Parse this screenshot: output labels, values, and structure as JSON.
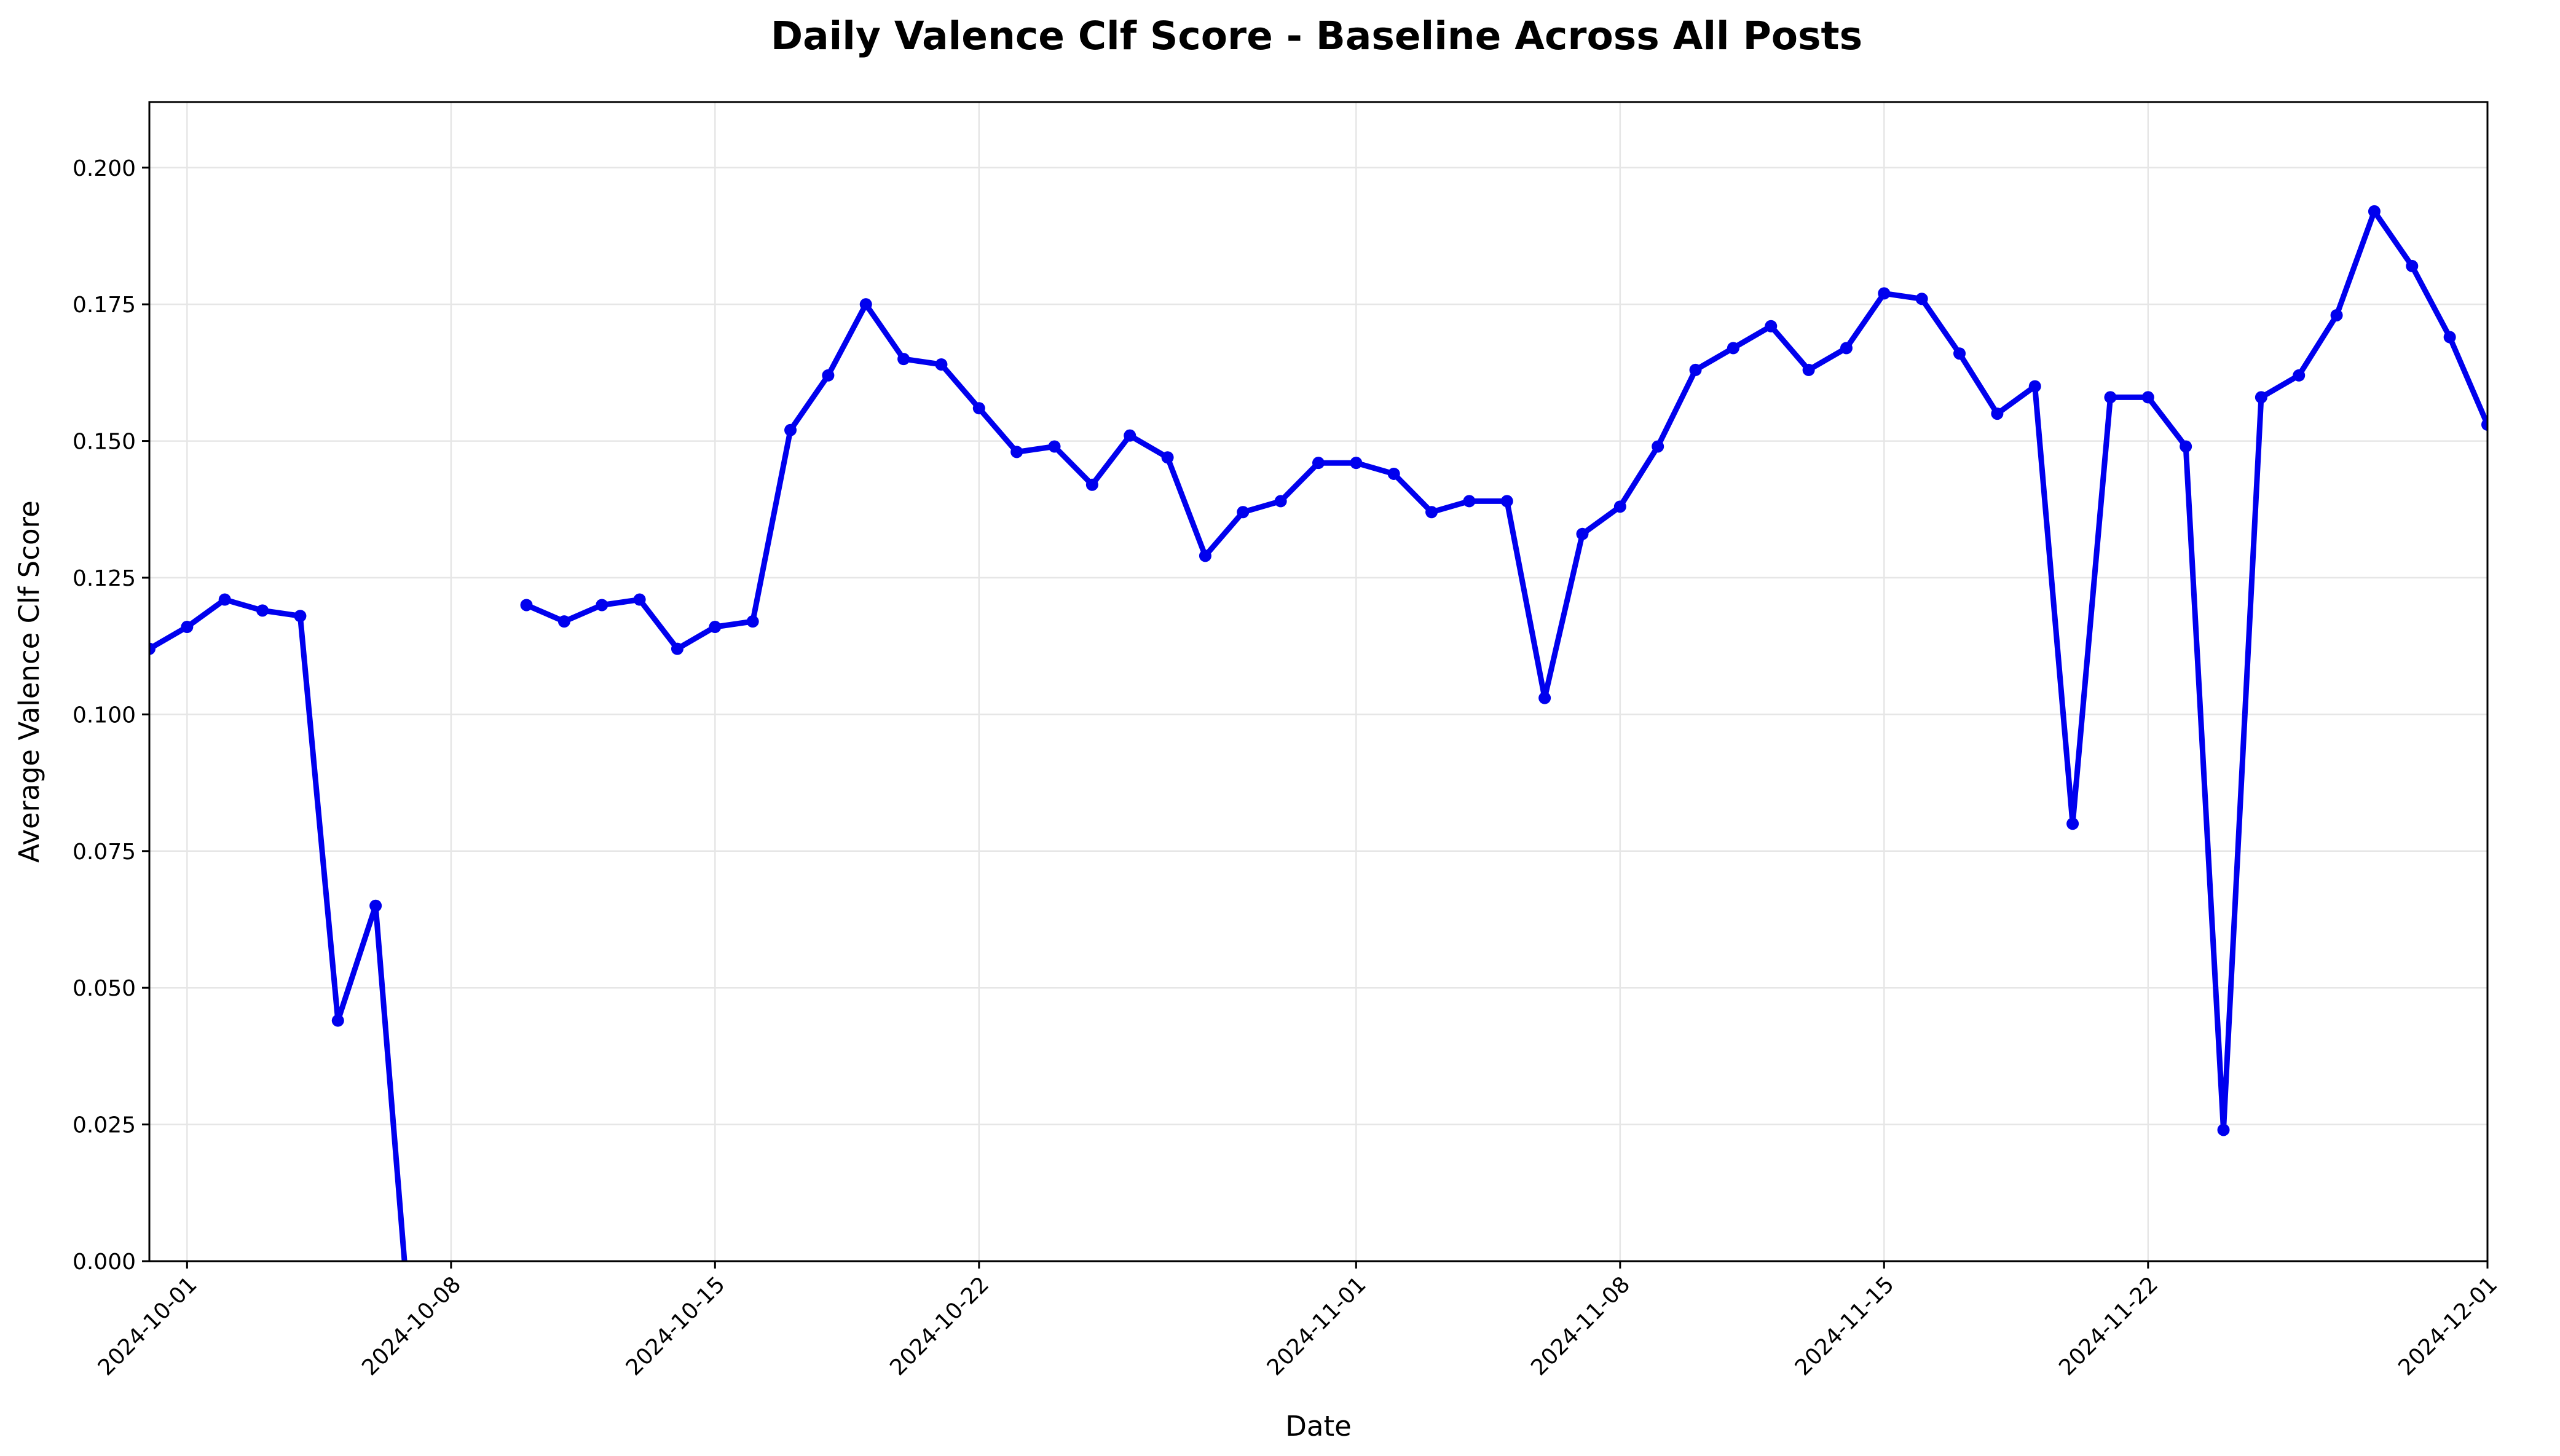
{
  "colors": {
    "line": "#0000ee",
    "grid": "#e6e6e6",
    "axis": "#000000",
    "background": "#ffffff"
  },
  "chart_data": {
    "type": "line",
    "title": "Daily Valence Clf Score - Baseline Across All Posts",
    "xlabel": "Date",
    "ylabel": "Average Valence Clf Score",
    "grid": true,
    "legend": "none",
    "xlim": [
      "2024-09-30",
      "2024-12-01"
    ],
    "ylim": [
      0,
      0.212
    ],
    "x_ticks": [
      "2024-10-01",
      "2024-10-08",
      "2024-10-15",
      "2024-10-22",
      "2024-11-01",
      "2024-11-08",
      "2024-11-15",
      "2024-11-22",
      "2024-12-01"
    ],
    "y_ticks": [
      "0.000",
      "0.025",
      "0.050",
      "0.075",
      "0.100",
      "0.125",
      "0.150",
      "0.175",
      "0.200"
    ],
    "series": [
      {
        "x": [
          "2024-09-30",
          "2024-10-01",
          "2024-10-02",
          "2024-10-03",
          "2024-10-04",
          "2024-10-05",
          "2024-10-06",
          "2024-10-07",
          "2024-10-08",
          "2024-10-09",
          "2024-10-10",
          "2024-10-11",
          "2024-10-12",
          "2024-10-13",
          "2024-10-14",
          "2024-10-15",
          "2024-10-16",
          "2024-10-17",
          "2024-10-18",
          "2024-10-19",
          "2024-10-20",
          "2024-10-21",
          "2024-10-22",
          "2024-10-23",
          "2024-10-24",
          "2024-10-25",
          "2024-10-26",
          "2024-10-27",
          "2024-10-28",
          "2024-10-29",
          "2024-10-30",
          "2024-10-31",
          "2024-11-01",
          "2024-11-02",
          "2024-11-03",
          "2024-11-04",
          "2024-11-05",
          "2024-11-06",
          "2024-11-07",
          "2024-11-08",
          "2024-11-09",
          "2024-11-10",
          "2024-11-11",
          "2024-11-12",
          "2024-11-13",
          "2024-11-14",
          "2024-11-15",
          "2024-11-16",
          "2024-11-17",
          "2024-11-18",
          "2024-11-19",
          "2024-11-20",
          "2024-11-21",
          "2024-11-22",
          "2024-11-23",
          "2024-11-24",
          "2024-11-25",
          "2024-11-26",
          "2024-11-27",
          "2024-11-28",
          "2024-11-29",
          "2024-11-30",
          "2024-12-01"
        ],
        "y": [
          0.112,
          0.116,
          0.121,
          0.119,
          0.118,
          0.044,
          0.065,
          -0.02,
          null,
          null,
          0.12,
          0.117,
          0.12,
          0.121,
          0.112,
          0.116,
          0.117,
          0.152,
          0.162,
          0.175,
          0.165,
          0.164,
          0.156,
          0.148,
          0.149,
          0.142,
          0.151,
          0.147,
          0.129,
          0.137,
          0.139,
          0.146,
          0.146,
          0.144,
          0.137,
          0.139,
          0.139,
          0.103,
          0.133,
          0.138,
          0.149,
          0.163,
          0.167,
          0.171,
          0.163,
          0.167,
          0.177,
          0.176,
          0.166,
          0.155,
          0.16,
          0.08,
          0.158,
          0.158,
          0.149,
          0.024,
          0.158,
          0.162,
          0.173,
          0.192,
          0.182,
          0.169,
          0.153
        ]
      }
    ]
  }
}
